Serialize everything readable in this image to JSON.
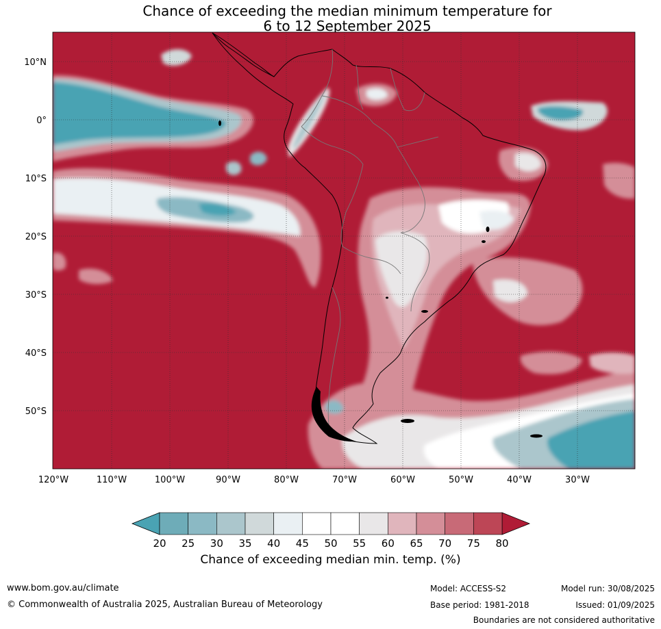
{
  "title": {
    "line1": "Chance of exceeding the median minimum temperature for",
    "line2": "6 to 12 September 2025"
  },
  "map": {
    "region": "South America and surrounding oceans",
    "lon_range": [
      -120,
      -20
    ],
    "lat_range": [
      -60,
      15
    ],
    "lat_labels": [
      "10°N",
      "0°",
      "10°S",
      "20°S",
      "30°S",
      "40°S",
      "50°S"
    ],
    "lon_labels": [
      "120°W",
      "110°W",
      "100°W",
      "90°W",
      "80°W",
      "70°W",
      "60°W",
      "50°W",
      "40°W",
      "30°W"
    ],
    "gridlines": true
  },
  "colorbar": {
    "ticks": [
      "20",
      "25",
      "30",
      "35",
      "40",
      "45",
      "50",
      "55",
      "60",
      "65",
      "70",
      "75",
      "80"
    ],
    "colors": {
      "below_20": "#4aa3b3",
      "20_25": "#6eacb8",
      "25_30": "#8bb9c4",
      "30_35": "#abc6cc",
      "35_40": "#d0d9da",
      "40_45": "#eaf0f3",
      "45_50": "#ffffff",
      "50_55": "#ffffff",
      "55_60": "#e9e7e8",
      "60_65": "#e0b5bc",
      "65_70": "#d48e98",
      "70_75": "#c86a77",
      "75_80": "#bd4656",
      "above_80": "#b01c36"
    },
    "label": "Chance of exceeding median min. temp. (%)"
  },
  "footer": {
    "website": "www.bom.gov.au/climate",
    "copyright": "© Commonwealth of Australia 2025, Australian Bureau of Meteorology",
    "model": "Model: ACCESS-S2",
    "base_period": "Base period: 1981-2018",
    "model_run": "Model run: 30/08/2025",
    "issued": "Issued: 01/09/2025",
    "disclaimer": "Boundaries are not considered authoritative"
  }
}
